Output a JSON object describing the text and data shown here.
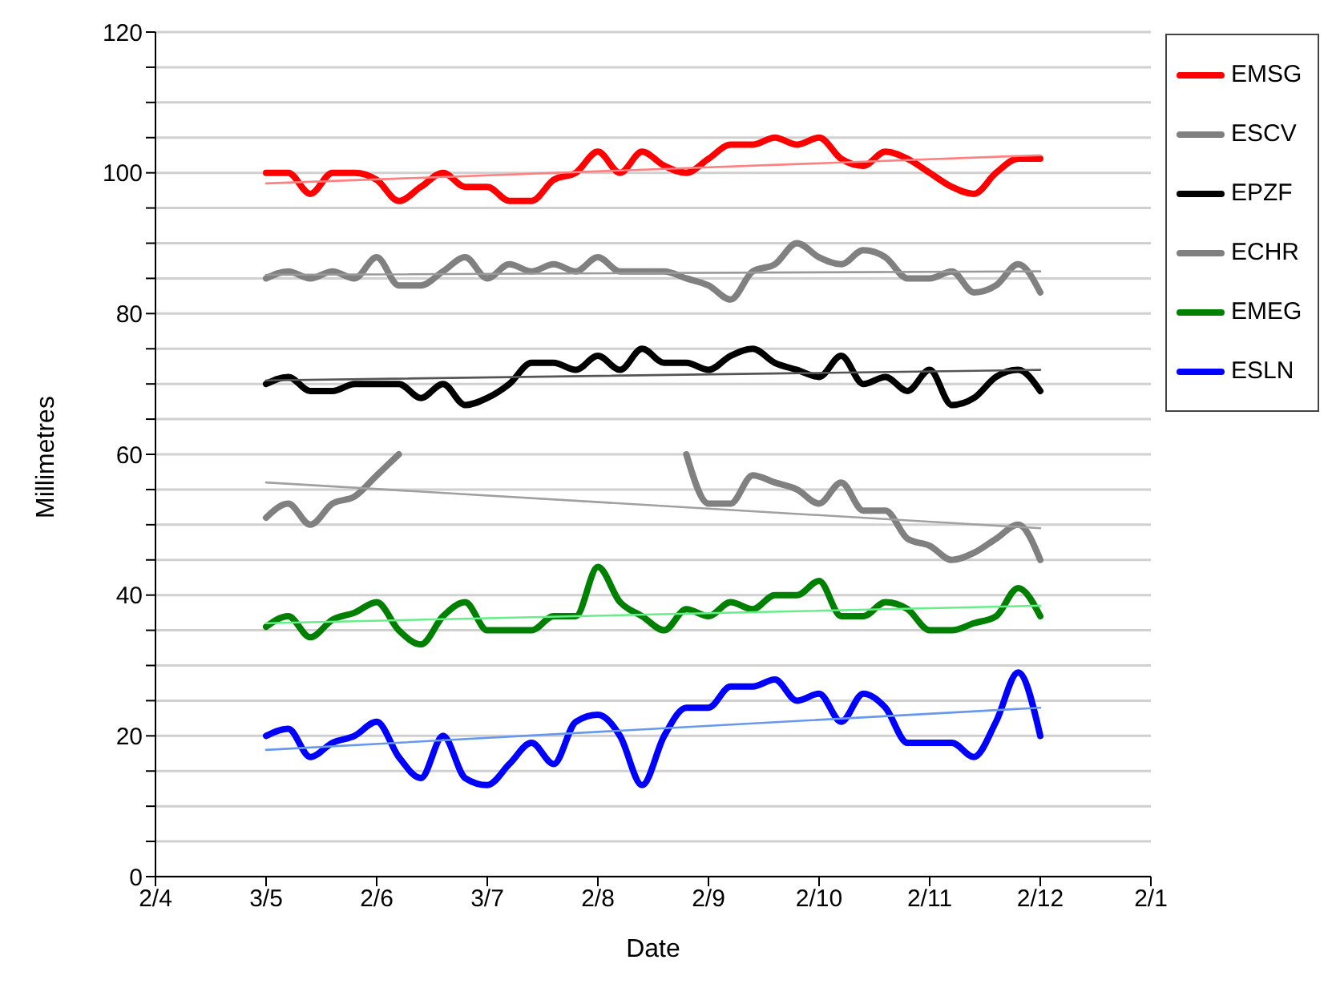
{
  "chart_data": {
    "type": "line",
    "xlabel": "Date",
    "ylabel": "Millimetres",
    "categories": [
      "2/4",
      null,
      null,
      null,
      null,
      "3/5",
      null,
      null,
      null,
      null,
      "2/6",
      null,
      null,
      null,
      null,
      "3/7",
      null,
      null,
      null,
      null,
      "2/8",
      null,
      null,
      null,
      null,
      "2/9",
      null,
      null,
      null,
      null,
      "2/10",
      null,
      null,
      null,
      null,
      "2/11",
      null,
      null,
      null,
      null,
      "2/12",
      null,
      null,
      null,
      null,
      "2/1"
    ],
    "ylim": [
      0,
      120
    ],
    "yticks": [
      0,
      {
        "value": 5,
        "label": null
      },
      {
        "value": 10,
        "label": null
      },
      {
        "value": 15,
        "label": null
      },
      20,
      {
        "value": 25,
        "label": null
      },
      {
        "value": 30,
        "label": null
      },
      {
        "value": 35,
        "label": null
      },
      40,
      {
        "value": 45,
        "label": null
      },
      {
        "value": 50,
        "label": null
      },
      {
        "value": 55,
        "label": null
      },
      60,
      {
        "value": 65,
        "label": null
      },
      {
        "value": 70,
        "label": null
      },
      {
        "value": 75,
        "label": null
      },
      80,
      {
        "value": 85,
        "label": null
      },
      {
        "value": 90,
        "label": null
      },
      {
        "value": 95,
        "label": null
      },
      100,
      {
        "value": 105,
        "label": null
      },
      {
        "value": 110,
        "label": null
      },
      {
        "value": 115,
        "label": null
      },
      120
    ],
    "grid": "y",
    "legend": "top right",
    "marker": "none",
    "line_style": "solid",
    "series": [
      {
        "name": "EMSG",
        "color": "#ff0000",
        "values": [
          null,
          null,
          null,
          null,
          null,
          100,
          100,
          97,
          100,
          100,
          99,
          96,
          98,
          100,
          98,
          98,
          96,
          96,
          99,
          100,
          103,
          100,
          103,
          101,
          100,
          102,
          104,
          104,
          105,
          104,
          105,
          102,
          101,
          103,
          102,
          100,
          98,
          97,
          100,
          102,
          102,
          null,
          null,
          null,
          null,
          null
        ]
      },
      {
        "name": "ESCV",
        "color": "#808080",
        "values": [
          null,
          null,
          null,
          null,
          null,
          85,
          86,
          85,
          86,
          85,
          88,
          84,
          84,
          86,
          88,
          85,
          87,
          86,
          87,
          86,
          88,
          86,
          86,
          86,
          85,
          84,
          82,
          86,
          87,
          90,
          88,
          87,
          89,
          88,
          85,
          85,
          86,
          83,
          84,
          87,
          83,
          null,
          null,
          null,
          null,
          null
        ]
      },
      {
        "name": "EPZF",
        "color": "#000000",
        "values": [
          null,
          null,
          null,
          null,
          null,
          70,
          71,
          69,
          69,
          70,
          70,
          70,
          68,
          70,
          67,
          68,
          70,
          73,
          73,
          72,
          74,
          72,
          75,
          73,
          73,
          72,
          74,
          75,
          73,
          72,
          71,
          74,
          70,
          71,
          69,
          72,
          67,
          68,
          71,
          72,
          69,
          null,
          null,
          null,
          null,
          null
        ]
      },
      {
        "name": "ECHR",
        "color": "#808080",
        "values": [
          null,
          null,
          null,
          null,
          null,
          51,
          53,
          50,
          53,
          54,
          57,
          60,
          null,
          null,
          null,
          null,
          null,
          null,
          null,
          null,
          null,
          null,
          null,
          null,
          60,
          53,
          53,
          57,
          56,
          55,
          53,
          56,
          52,
          52,
          48,
          47,
          45,
          46,
          48,
          50,
          45,
          null,
          null,
          null,
          null,
          null
        ]
      },
      {
        "name": "EMEG",
        "color": "#008000",
        "values": [
          null,
          null,
          null,
          null,
          null,
          35.5,
          37,
          34,
          36.5,
          37.5,
          39,
          35,
          33,
          37,
          39,
          35,
          35,
          35,
          37,
          37,
          44,
          39,
          37,
          35,
          38,
          37,
          39,
          38,
          40,
          40,
          42,
          37,
          37,
          39,
          38,
          35,
          35,
          36,
          37,
          41,
          37,
          null,
          null,
          null,
          null,
          null
        ]
      },
      {
        "name": "ESLN",
        "color": "#0000ff",
        "values": [
          null,
          null,
          null,
          null,
          null,
          20,
          21,
          17,
          19,
          20,
          22,
          17,
          14,
          20,
          14,
          13,
          16,
          19,
          16,
          22,
          23,
          20,
          13,
          20,
          24,
          24,
          27,
          27,
          28,
          25,
          26,
          22,
          26,
          24,
          19,
          19,
          19,
          17,
          22,
          29,
          20,
          null,
          null,
          null,
          null,
          null
        ]
      },
      {
        "type": "line",
        "color": "#ff8080",
        "values": [
          null,
          null,
          null,
          null,
          null,
          98.5,
          null,
          null,
          null,
          null,
          null,
          null,
          null,
          null,
          null,
          null,
          null,
          null,
          null,
          null,
          null,
          null,
          null,
          null,
          null,
          null,
          null,
          null,
          null,
          null,
          null,
          null,
          null,
          null,
          null,
          null,
          null,
          null,
          null,
          null,
          102.5,
          null,
          null,
          null,
          null,
          null
        ]
      },
      {
        "type": "line",
        "color": "#999999",
        "values": [
          null,
          null,
          null,
          null,
          null,
          85.5,
          null,
          null,
          null,
          null,
          null,
          null,
          null,
          null,
          null,
          null,
          null,
          null,
          null,
          null,
          null,
          null,
          null,
          null,
          null,
          null,
          null,
          null,
          null,
          null,
          null,
          null,
          null,
          null,
          null,
          null,
          null,
          null,
          null,
          null,
          86,
          null,
          null,
          null,
          null,
          null
        ]
      },
      {
        "type": "line",
        "color": "#555555",
        "values": [
          null,
          null,
          null,
          null,
          null,
          70.5,
          null,
          null,
          null,
          null,
          null,
          null,
          null,
          null,
          null,
          null,
          null,
          null,
          null,
          null,
          null,
          null,
          null,
          null,
          null,
          null,
          null,
          null,
          null,
          null,
          null,
          null,
          null,
          null,
          null,
          null,
          null,
          null,
          null,
          null,
          72,
          null,
          null,
          null,
          null,
          null
        ]
      },
      {
        "type": "line",
        "color": "#a0a0a0",
        "values": [
          null,
          null,
          null,
          null,
          null,
          56,
          null,
          null,
          null,
          null,
          null,
          null,
          null,
          null,
          null,
          null,
          null,
          null,
          null,
          null,
          null,
          null,
          null,
          null,
          null,
          null,
          null,
          null,
          null,
          null,
          null,
          null,
          null,
          null,
          null,
          null,
          null,
          null,
          null,
          null,
          49.5,
          null,
          null,
          null,
          null,
          null
        ]
      },
      {
        "type": "line",
        "color": "#66ee88",
        "values": [
          null,
          null,
          null,
          null,
          null,
          36,
          null,
          null,
          null,
          null,
          null,
          null,
          null,
          null,
          null,
          null,
          null,
          null,
          null,
          null,
          null,
          null,
          null,
          null,
          null,
          null,
          null,
          null,
          null,
          null,
          null,
          null,
          null,
          null,
          null,
          null,
          null,
          null,
          null,
          null,
          38.5,
          null,
          null,
          null,
          null,
          null
        ]
      },
      {
        "type": "line",
        "color": "#6699ee",
        "values": [
          null,
          null,
          null,
          null,
          null,
          18,
          null,
          null,
          null,
          null,
          null,
          null,
          null,
          null,
          null,
          null,
          null,
          null,
          null,
          null,
          null,
          null,
          null,
          null,
          null,
          null,
          null,
          null,
          null,
          null,
          null,
          null,
          null,
          null,
          null,
          null,
          null,
          null,
          null,
          null,
          24,
          null,
          null,
          null,
          null,
          null
        ]
      }
    ]
  }
}
